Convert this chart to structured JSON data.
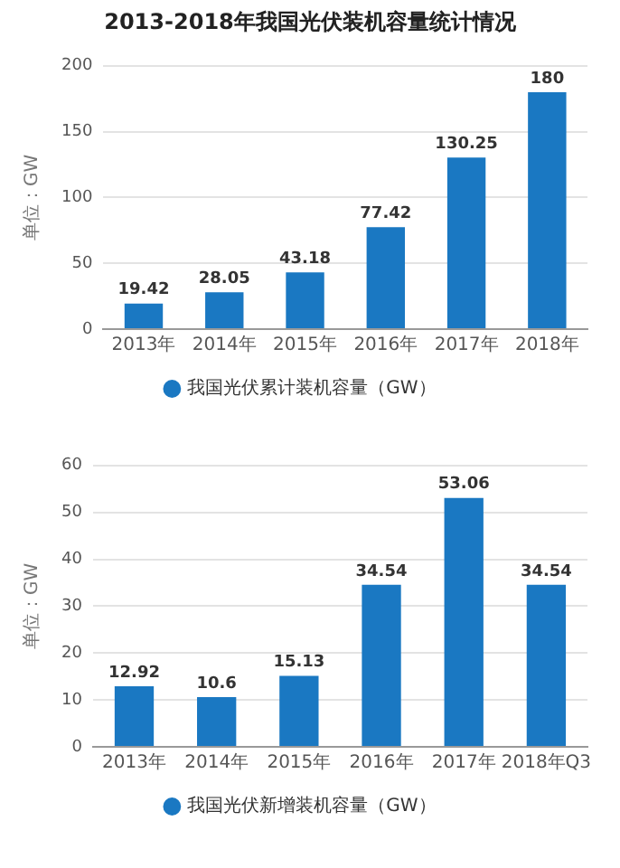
{
  "chart_data": [
    {
      "type": "bar",
      "title": "2013-2018年我国光伏装机容量统计情况",
      "ylabel": "单位：GW",
      "categories": [
        "2013年",
        "2014年",
        "2015年",
        "2016年",
        "2017年",
        "2018年"
      ],
      "series": [
        {
          "name": "我国光伏累计装机容量（GW）",
          "color": "#1a78c2",
          "values": [
            19.42,
            28.05,
            43.18,
            77.42,
            130.25,
            180
          ]
        }
      ],
      "ylim": [
        0,
        200
      ],
      "yticks": [
        0,
        50,
        100,
        150,
        200
      ],
      "grid": "y",
      "legend": "bottom",
      "data_labels": true
    },
    {
      "type": "bar",
      "ylabel": "单位：GW",
      "categories": [
        "2013年",
        "2014年",
        "2015年",
        "2016年",
        "2017年",
        "2018年Q3"
      ],
      "series": [
        {
          "name": "我国光伏新增装机容量（GW）",
          "color": "#1a78c2",
          "values": [
            12.92,
            10.6,
            15.13,
            34.54,
            53.06,
            34.54
          ]
        }
      ],
      "ylim": [
        0,
        60
      ],
      "yticks": [
        0,
        10,
        20,
        30,
        40,
        50,
        60
      ],
      "grid": "y",
      "legend": "bottom",
      "data_labels": true
    }
  ]
}
